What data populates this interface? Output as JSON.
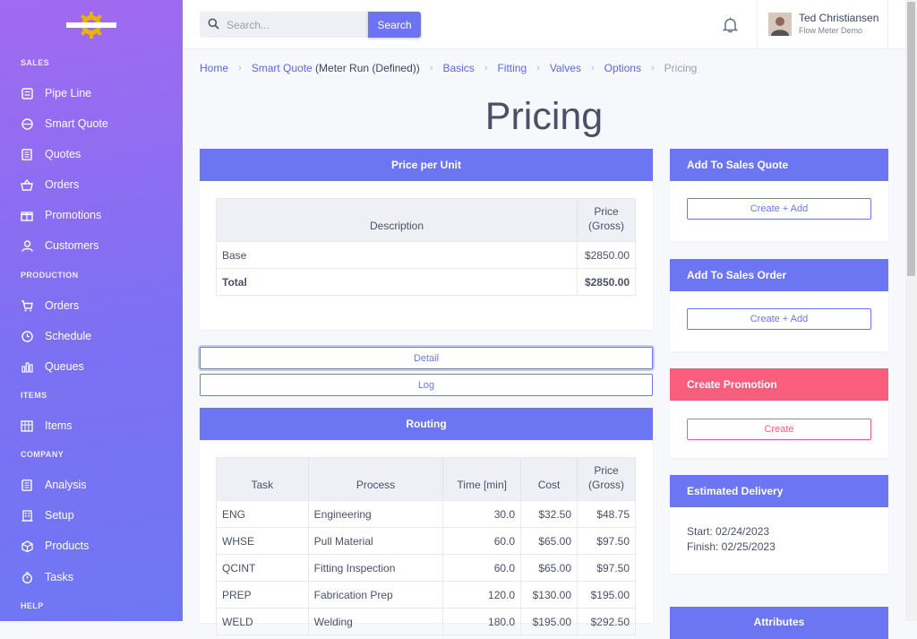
{
  "sidebar": {
    "sections": {
      "sales": "SALES",
      "production": "PRODUCTION",
      "items": "ITEMS",
      "company": "COMPANY",
      "help": "HELP"
    },
    "items": {
      "pipeline": "Pipe Line",
      "smart_quote": "Smart Quote",
      "quotes": "Quotes",
      "orders": "Orders",
      "promotions": "Promotions",
      "customers": "Customers",
      "prod_orders": "Orders",
      "schedule": "Schedule",
      "queues": "Queues",
      "items": "Items",
      "analysis": "Analysis",
      "setup": "Setup",
      "products": "Products",
      "tasks": "Tasks"
    }
  },
  "header": {
    "search_placeholder": "Search...",
    "search_button": "Search",
    "user_name": "Ted Christiansen",
    "user_company": "Flow Meter Demo"
  },
  "breadcrumb": {
    "home": "Home",
    "smart_quote": "Smart Quote",
    "smart_quote_suffix": " (Meter Run (Defined))",
    "basics": "Basics",
    "fitting": "Fitting",
    "valves": "Valves",
    "options": "Options",
    "pricing": "Pricing"
  },
  "page_title": "Pricing",
  "price_per_unit": {
    "title": "Price per Unit",
    "col_description": "Description",
    "col_price_1": "Price",
    "col_price_2": "(Gross)",
    "base_label": "Base",
    "base_price": "$2850.00",
    "total_label": "Total",
    "total_price": "$2850.00"
  },
  "buttons": {
    "detail": "Detail",
    "log": "Log"
  },
  "routing": {
    "title": "Routing",
    "columns": {
      "task": "Task",
      "process": "Process",
      "time": "Time [min]",
      "cost": "Cost",
      "price_1": "Price",
      "price_2": "(Gross)"
    },
    "rows": [
      {
        "task": "ENG",
        "process": "Engineering",
        "time": "30.0",
        "cost": "$32.50",
        "price": "$48.75"
      },
      {
        "task": "WHSE",
        "process": "Pull Material",
        "time": "60.0",
        "cost": "$65.00",
        "price": "$97.50"
      },
      {
        "task": "QCINT",
        "process": "Fitting Inspection",
        "time": "60.0",
        "cost": "$65.00",
        "price": "$97.50"
      },
      {
        "task": "PREP",
        "process": "Fabrication Prep",
        "time": "120.0",
        "cost": "$130.00",
        "price": "$195.00"
      },
      {
        "task": "WELD",
        "process": "Welding",
        "time": "180.0",
        "cost": "$195.00",
        "price": "$292.50"
      }
    ]
  },
  "sales_quote": {
    "title": "Add To Sales Quote",
    "button": "Create + Add"
  },
  "sales_order": {
    "title": "Add To Sales Order",
    "button": "Create + Add"
  },
  "promotion": {
    "title": "Create Promotion",
    "button": "Create"
  },
  "delivery": {
    "title": "Estimated Delivery",
    "start": "Start: 02/24/2023",
    "finish": "Finish: 02/25/2023"
  },
  "attributes": {
    "title": "Attributes"
  },
  "colors": {
    "accent": "#6c76f3",
    "promotion": "#fb5e7d",
    "sidebar_top": "#a26af0",
    "sidebar_bottom": "#6e77f4"
  }
}
